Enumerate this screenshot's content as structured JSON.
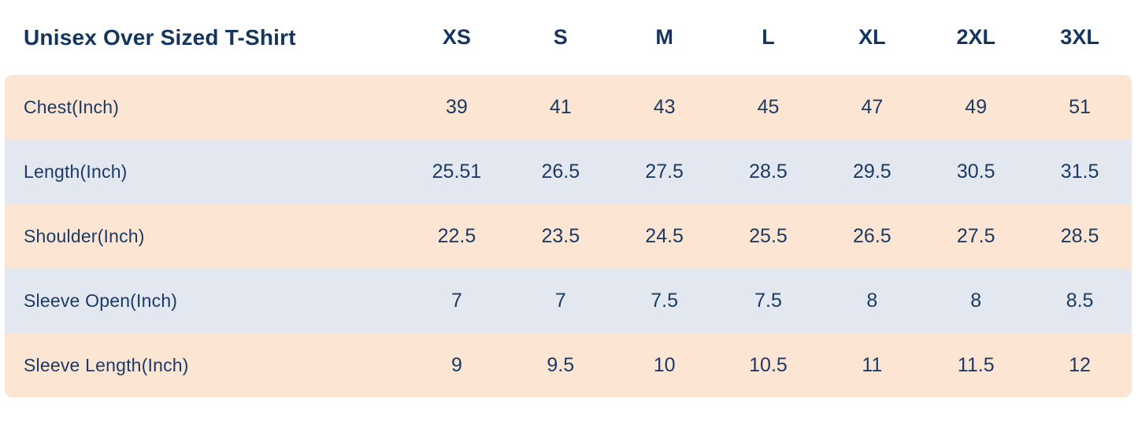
{
  "chart_data": {
    "type": "table",
    "title": "Unisex Over Sized T-Shirt",
    "columns": [
      "XS",
      "S",
      "M",
      "L",
      "XL",
      "2XL",
      "3XL"
    ],
    "rows": [
      {
        "label": "Chest(Inch)",
        "values": [
          "39",
          "41",
          "43",
          "45",
          "47",
          "49",
          "51"
        ]
      },
      {
        "label": "Length(Inch)",
        "values": [
          "25.51",
          "26.5",
          "27.5",
          "28.5",
          "29.5",
          "30.5",
          "31.5"
        ]
      },
      {
        "label": "Shoulder(Inch)",
        "values": [
          "22.5",
          "23.5",
          "24.5",
          "25.5",
          "26.5",
          "27.5",
          "28.5"
        ]
      },
      {
        "label": "Sleeve Open(Inch)",
        "values": [
          "7",
          "7",
          "7.5",
          "7.5",
          "8",
          "8",
          "8.5"
        ]
      },
      {
        "label": "Sleeve Length(Inch)",
        "values": [
          "9",
          "9.5",
          "10",
          "10.5",
          "11",
          "11.5",
          "12"
        ]
      }
    ]
  },
  "colors": {
    "row_peach": "#fce5d3",
    "row_blue": "#e3e8f0",
    "text_navy": "#1b3a64",
    "title_navy": "#14355e",
    "background": "#ffffff"
  }
}
